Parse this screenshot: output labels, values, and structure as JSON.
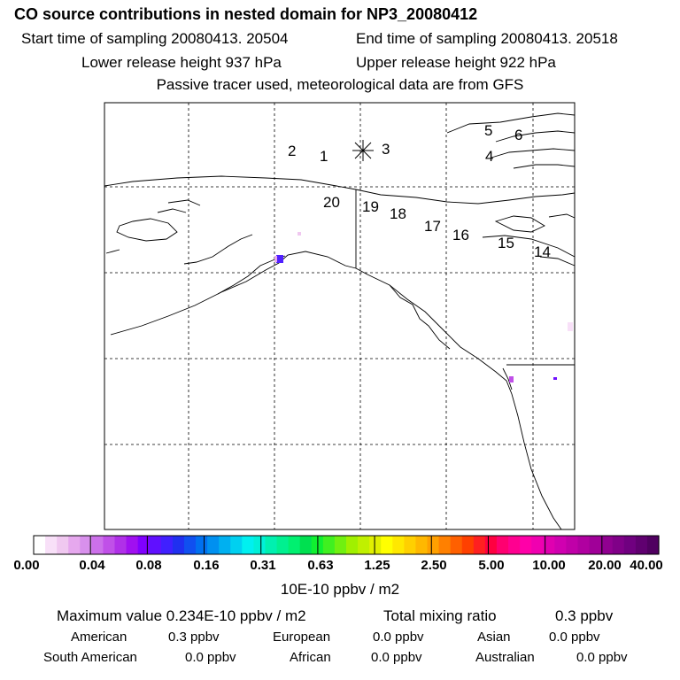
{
  "header": {
    "title": "CO  source contributions in nested domain for NP3_20080412",
    "start_time": "Start time of sampling 20080413. 20504",
    "end_time": "End time of sampling 20080413. 20518",
    "lower_height": "Lower release height  937 hPa",
    "upper_height": "Upper release height  922 hPa",
    "tracer_note": "Passive tracer used, meteorological data are from GFS"
  },
  "map": {
    "point_labels": [
      "1",
      "2",
      "3",
      "4",
      "5",
      "6",
      "14",
      "15",
      "16",
      "17",
      "18",
      "19",
      "20"
    ],
    "release_marker": "asterisk-marker"
  },
  "colorbar": {
    "ticks": [
      "0.00",
      "0.04",
      "0.08",
      "0.16",
      "0.31",
      "0.63",
      "1.25",
      "2.50",
      "5.00",
      "10.00",
      "20.00",
      "40.00"
    ],
    "units": "10E-10 ppbv / m2",
    "colors": [
      "#ffffff",
      "#f8e0f8",
      "#f0c8f0",
      "#e6a8ee",
      "#d890ec",
      "#cc70ea",
      "#c050e8",
      "#b030e8",
      "#a010f0",
      "#8000ff",
      "#6010ff",
      "#4020ff",
      "#2030f0",
      "#1050f0",
      "#0070f0",
      "#0090f0",
      "#00b0f0",
      "#00d0f0",
      "#00f0f0",
      "#00f0d8",
      "#00f0b0",
      "#00f090",
      "#00f070",
      "#00e050",
      "#10f030",
      "#40f020",
      "#70f010",
      "#a0f000",
      "#c0f000",
      "#e0f000",
      "#ffff00",
      "#ffe800",
      "#ffd000",
      "#ffb800",
      "#ffa000",
      "#ff8000",
      "#ff6000",
      "#ff4000",
      "#ff2020",
      "#ff0040",
      "#ff0070",
      "#ff0090",
      "#ff00a8",
      "#f000b0",
      "#e000b0",
      "#d000b0",
      "#c000a8",
      "#b000a0",
      "#a00098",
      "#900090",
      "#800088",
      "#700080",
      "#600070",
      "#500060"
    ]
  },
  "stats": {
    "max_value": "Maximum value  0.234E-10 ppbv / m2",
    "total_label": "Total mixing ratio",
    "total_value": "0.3 ppbv",
    "regions": [
      {
        "name": "American",
        "value": "0.3 ppbv"
      },
      {
        "name": "European",
        "value": "0.0 ppbv"
      },
      {
        "name": "Asian",
        "value": "0.0 ppbv"
      },
      {
        "name": "South American",
        "value": "0.0 ppbv"
      },
      {
        "name": "African",
        "value": "0.0 ppbv"
      },
      {
        "name": "Australian",
        "value": "0.0 ppbv"
      }
    ]
  }
}
